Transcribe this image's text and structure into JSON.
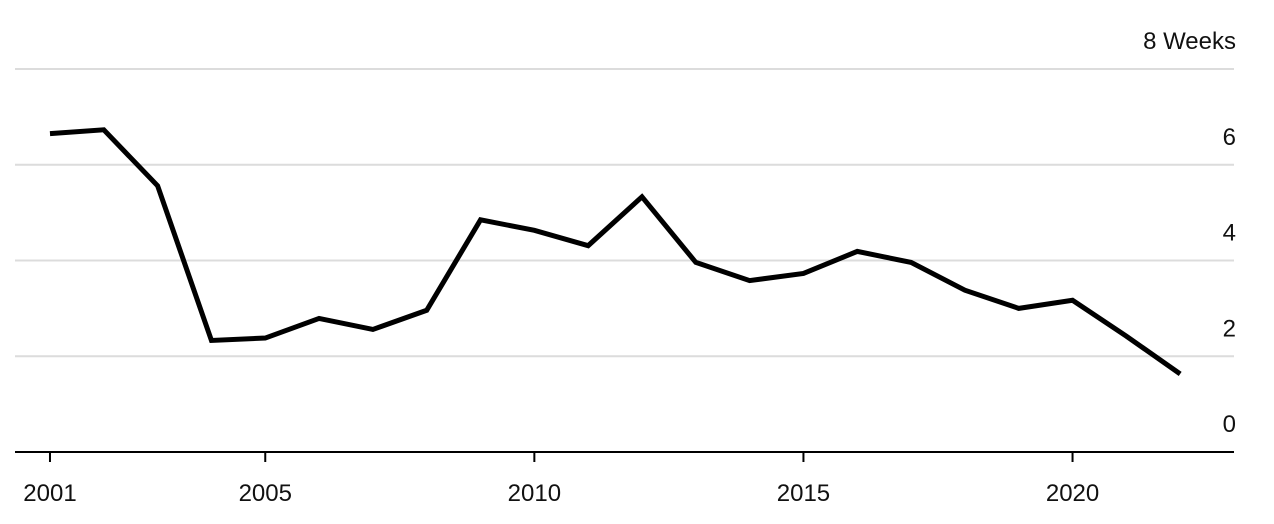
{
  "chart_data": {
    "type": "line",
    "x": [
      2001,
      2002,
      2003,
      2004,
      2005,
      2006,
      2007,
      2008,
      2009,
      2010,
      2011,
      2012,
      2013,
      2014,
      2015,
      2016,
      2017,
      2018,
      2019,
      2020,
      2021,
      2022
    ],
    "series": [
      {
        "color": "#000000",
        "values": [
          6.65,
          6.73,
          5.56,
          2.33,
          2.38,
          2.79,
          2.56,
          2.96,
          4.85,
          4.63,
          4.31,
          5.33,
          3.96,
          3.58,
          3.73,
          4.19,
          3.96,
          3.38,
          3.0,
          3.17,
          2.42,
          1.63
        ]
      }
    ],
    "xlim": [
      2000.35,
      2023.0
    ],
    "xticks": [
      2001,
      2005,
      2010,
      2015,
      2020
    ],
    "ylim": [
      0,
      8
    ],
    "yticks": [
      0,
      2,
      4,
      6,
      {
        "value": 8,
        "label": "8 Weeks"
      }
    ],
    "grid": true
  }
}
